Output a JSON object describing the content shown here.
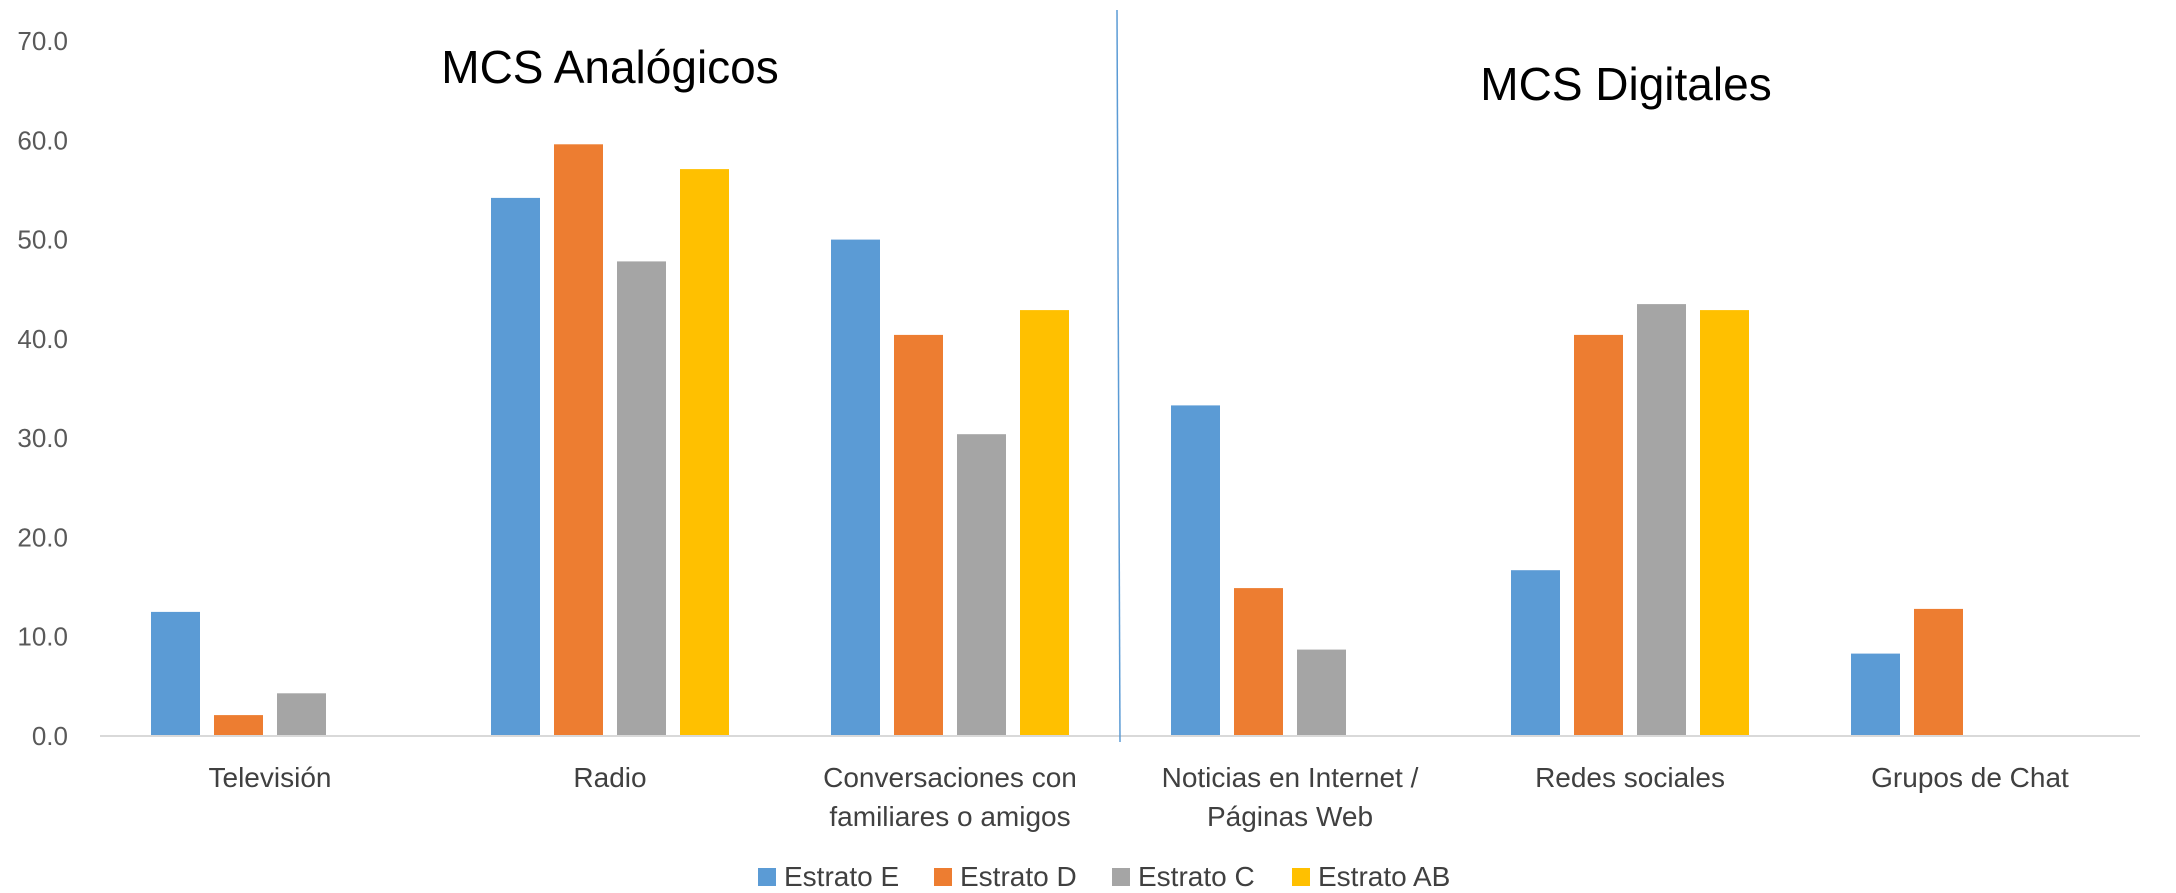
{
  "chart_data": {
    "type": "bar",
    "categories": [
      [
        "Televisión"
      ],
      [
        "Radio"
      ],
      [
        "Conversaciones con",
        "familiares o amigos"
      ],
      [
        "Noticias en Internet /",
        "Páginas Web"
      ],
      [
        "Redes sociales"
      ],
      [
        "Grupos de Chat"
      ]
    ],
    "series": [
      {
        "name": "Estrato E",
        "color": "#5B9BD5",
        "values": [
          12.5,
          54.2,
          50.0,
          33.3,
          16.7,
          8.3
        ]
      },
      {
        "name": "Estrato D",
        "color": "#ED7D31",
        "values": [
          2.1,
          59.6,
          40.4,
          14.9,
          40.4,
          12.8
        ]
      },
      {
        "name": "Estrato C",
        "color": "#A5A5A5",
        "values": [
          4.3,
          47.8,
          30.4,
          8.7,
          43.5,
          null
        ]
      },
      {
        "name": "Estrato AB",
        "color": "#FFC000",
        "values": [
          null,
          57.1,
          42.9,
          null,
          42.9,
          null
        ]
      }
    ],
    "y_ticks": [
      "0.0",
      "10.0",
      "20.0",
      "30.0",
      "40.0",
      "50.0",
      "60.0",
      "70.0"
    ],
    "ylim": [
      0,
      70
    ],
    "annotations": [
      "MCS Analógicos",
      "MCS Digitales"
    ],
    "legend_position": "bottom",
    "grid": false
  }
}
